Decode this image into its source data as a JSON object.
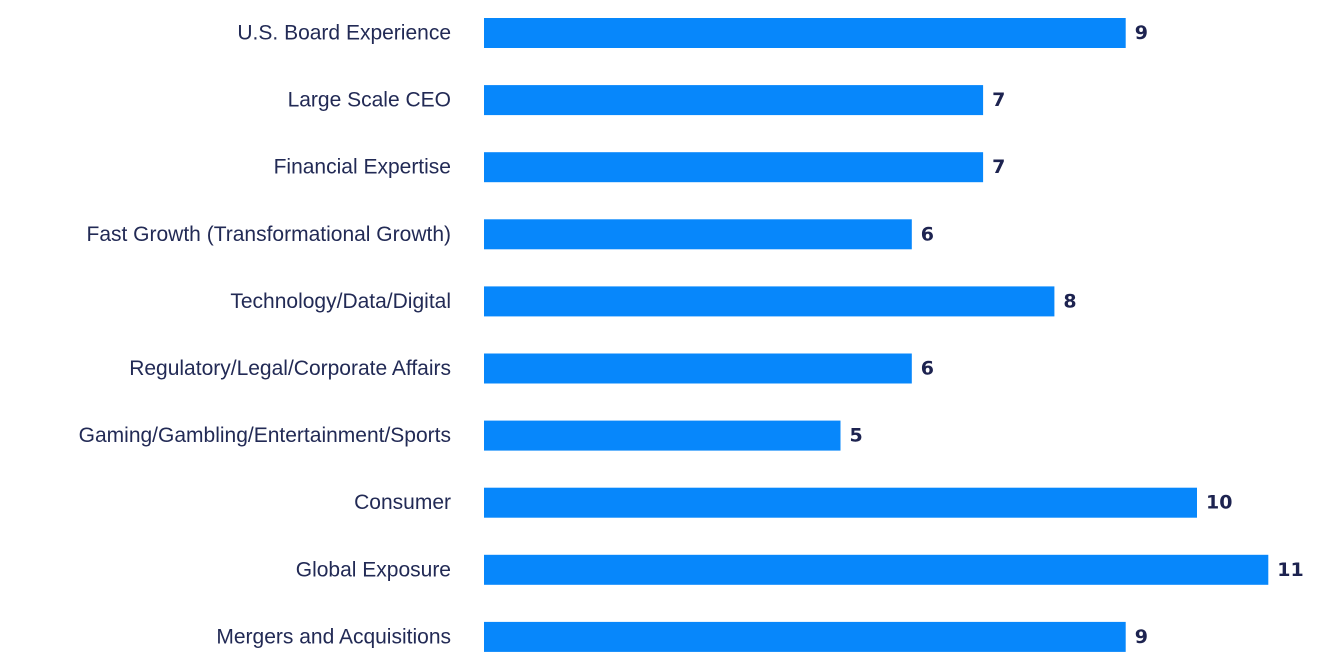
{
  "chart_data": {
    "type": "bar",
    "orientation": "horizontal",
    "title": "",
    "xlabel": "",
    "ylabel": "",
    "grid": false,
    "legend": "none",
    "xlim": [
      0,
      11
    ],
    "categories": [
      "U.S. Board Experience",
      "Large Scale CEO",
      "Financial Expertise",
      "Fast Growth (Transformational Growth)",
      "Technology/Data/Digital",
      "Regulatory/Legal/Corporate Affairs",
      "Gaming/Gambling/Entertainment/Sports",
      "Consumer",
      "Global Exposure",
      "Mergers and Acquisitions"
    ],
    "values": [
      9,
      7,
      7,
      6,
      8,
      6,
      5,
      10,
      11,
      9
    ],
    "bar_color": "#0787fb",
    "label_color": "#222a55",
    "value_color": "#1d2350"
  }
}
